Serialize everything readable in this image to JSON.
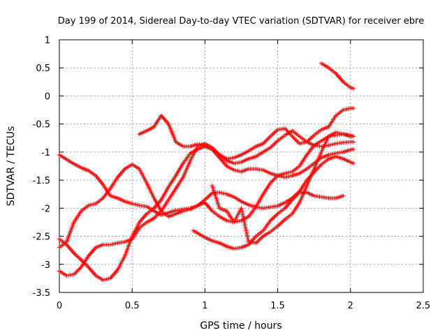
{
  "chart_data": {
    "type": "scatter",
    "title": "Day 199 of 2014, Sidereal Day-to-day VTEC variation (SDTVAR) for receiver ebre",
    "xlabel": "GPS time / hours",
    "ylabel": "SDTVAR / TECUs",
    "xlim": [
      0,
      2.5
    ],
    "ylim": [
      -3.5,
      1
    ],
    "xticks": [
      0,
      0.5,
      1,
      1.5,
      2,
      2.5
    ],
    "yticks": [
      -3.5,
      -3,
      -2.5,
      -2,
      -1.5,
      -1,
      -0.5,
      0,
      0.5,
      1
    ],
    "xtick_labels": [
      "0",
      "0.5",
      "1",
      "1.5",
      "2",
      "2.5"
    ],
    "ytick_labels": [
      "-3.5",
      "-3",
      "-2.5",
      "-2",
      "-1.5",
      "-1",
      "-0.5",
      "0",
      "0.5",
      "1"
    ],
    "grid": true,
    "marker": "plus",
    "color": "#ff0000",
    "series": [
      {
        "x": [
          0.0,
          0.08,
          0.15,
          0.2,
          0.25,
          0.3,
          0.35,
          0.4,
          0.45,
          0.5,
          0.55,
          0.6,
          0.65,
          0.7,
          0.75,
          0.8,
          0.85,
          0.9,
          0.95,
          1.0,
          1.05,
          1.1,
          1.15,
          1.2,
          1.25,
          1.3,
          1.35,
          1.4,
          1.45,
          1.5,
          1.55,
          1.6,
          1.65,
          1.7,
          1.75,
          1.8,
          1.85,
          1.9,
          1.95,
          2.0,
          2.02
        ],
        "y": [
          -1.05,
          -1.18,
          -1.28,
          -1.33,
          -1.42,
          -1.58,
          -1.78,
          -1.82,
          -1.88,
          -1.92,
          -1.95,
          -1.97,
          -2.05,
          -2.12,
          -2.08,
          -2.04,
          -2.02,
          -2.0,
          -1.96,
          -1.85,
          -1.73,
          -1.72,
          -1.75,
          -1.8,
          -1.88,
          -1.94,
          -1.98,
          -2.0,
          -1.98,
          -1.96,
          -1.9,
          -1.82,
          -1.7,
          -1.5,
          -1.36,
          -1.22,
          -1.12,
          -1.08,
          -1.12,
          -1.18,
          -1.2
        ]
      },
      {
        "x": [
          0.0,
          0.05,
          0.1,
          0.15,
          0.2,
          0.25,
          0.3,
          0.35,
          0.4,
          0.45,
          0.5,
          0.55,
          0.6,
          0.65,
          0.7,
          0.75,
          0.8,
          0.85,
          0.9,
          0.95,
          1.0,
          1.05,
          1.1,
          1.15,
          1.2,
          1.25,
          1.3,
          1.35,
          1.4,
          1.45,
          1.5,
          1.55,
          1.6,
          1.65,
          1.7,
          1.75,
          1.8,
          1.85,
          1.9,
          1.95,
          2.0,
          2.02
        ],
        "y": [
          -2.7,
          -2.6,
          -2.25,
          -2.05,
          -1.95,
          -1.92,
          -1.82,
          -1.65,
          -1.45,
          -1.3,
          -1.22,
          -1.3,
          -1.55,
          -1.82,
          -2.05,
          -2.15,
          -2.1,
          -2.05,
          -2.02,
          -1.95,
          -1.9,
          -2.05,
          -2.15,
          -2.22,
          -2.25,
          -2.22,
          -2.15,
          -1.98,
          -1.75,
          -1.55,
          -1.42,
          -1.38,
          -1.35,
          -1.25,
          -1.05,
          -0.88,
          -0.8,
          -0.72,
          -0.7,
          -0.68,
          -0.7,
          -0.72
        ]
      },
      {
        "x": [
          0.0,
          0.05,
          0.1,
          0.15,
          0.2,
          0.25,
          0.3,
          0.35,
          0.4,
          0.45,
          0.5,
          0.55,
          0.6,
          0.65,
          0.7,
          0.75,
          0.8,
          0.85,
          0.9,
          0.95,
          1.0,
          1.05,
          1.1,
          1.15,
          1.2,
          1.25,
          1.3,
          1.35,
          1.4,
          1.45,
          1.5,
          1.55,
          1.6,
          1.65,
          1.7,
          1.75,
          1.8,
          1.85,
          1.9,
          1.95,
          2.0,
          2.02
        ],
        "y": [
          -3.12,
          -3.2,
          -3.18,
          -3.05,
          -2.85,
          -2.7,
          -2.65,
          -2.65,
          -2.62,
          -2.6,
          -2.55,
          -2.35,
          -2.25,
          -2.18,
          -2.05,
          -1.85,
          -1.65,
          -1.45,
          -1.15,
          -0.9,
          -0.85,
          -0.92,
          -1.05,
          -1.15,
          -1.2,
          -1.18,
          -1.12,
          -1.08,
          -1.0,
          -0.92,
          -0.8,
          -0.7,
          -0.62,
          -0.72,
          -0.82,
          -0.88,
          -0.9,
          -0.88,
          -0.85,
          -0.83,
          -0.82,
          -0.82
        ]
      },
      {
        "x": [
          0.0,
          0.05,
          0.1,
          0.15,
          0.2,
          0.25,
          0.3,
          0.35,
          0.4,
          0.45,
          0.5,
          0.55,
          0.6,
          0.65,
          0.7,
          0.75,
          0.8,
          0.85,
          0.9,
          0.95,
          1.0,
          1.05,
          1.1,
          1.15,
          1.2,
          1.25,
          1.3,
          1.35,
          1.4,
          1.45,
          1.5,
          1.55,
          1.6,
          1.65,
          1.7,
          1.75,
          1.8,
          1.85,
          1.9,
          1.95,
          2.0,
          2.02
        ],
        "y": [
          -2.55,
          -2.65,
          -2.8,
          -2.92,
          -3.05,
          -3.2,
          -3.28,
          -3.25,
          -3.1,
          -2.85,
          -2.5,
          -2.25,
          -2.1,
          -2.0,
          -1.85,
          -1.62,
          -1.42,
          -1.2,
          -1.02,
          -0.95,
          -0.9,
          -0.95,
          -1.1,
          -1.25,
          -1.32,
          -1.35,
          -1.3,
          -1.3,
          -1.32,
          -1.38,
          -1.42,
          -1.45,
          -1.42,
          -1.38,
          -1.3,
          -1.2,
          -1.1,
          -1.05,
          -1.02,
          -1.0,
          -0.96,
          -0.95
        ]
      },
      {
        "x": [
          0.55,
          0.6,
          0.65,
          0.7,
          0.75,
          0.8,
          0.85,
          0.9,
          0.95,
          1.0,
          1.05,
          1.1,
          1.15,
          1.2,
          1.25,
          1.3,
          1.35,
          1.4,
          1.45,
          1.5,
          1.55,
          1.6,
          1.65,
          1.7,
          1.75,
          1.8,
          1.85,
          1.9,
          1.95,
          2.0,
          2.02
        ],
        "y": [
          -0.68,
          -0.62,
          -0.55,
          -0.35,
          -0.5,
          -0.82,
          -0.9,
          -0.9,
          -0.86,
          -0.88,
          -0.95,
          -1.05,
          -1.12,
          -1.1,
          -1.05,
          -0.98,
          -0.9,
          -0.85,
          -0.72,
          -0.6,
          -0.58,
          -0.72,
          -0.85,
          -0.82,
          -0.7,
          -0.6,
          -0.55,
          -0.35,
          -0.25,
          -0.22,
          -0.22
        ]
      },
      {
        "x": [
          0.92,
          1.0,
          1.05,
          1.1,
          1.15,
          1.2,
          1.25,
          1.3,
          1.35,
          1.4,
          1.45,
          1.5,
          1.55,
          1.6,
          1.65,
          1.7,
          1.75,
          1.8,
          1.85,
          1.9,
          1.95
        ],
        "y": [
          -2.4,
          -2.52,
          -2.58,
          -2.62,
          -2.68,
          -2.72,
          -2.7,
          -2.65,
          -2.5,
          -2.4,
          -2.22,
          -2.1,
          -2.0,
          -1.85,
          -1.72,
          -1.72,
          -1.78,
          -1.8,
          -1.82,
          -1.82,
          -1.78
        ]
      },
      {
        "x": [
          1.05,
          1.1,
          1.15,
          1.2,
          1.25,
          1.3,
          1.35,
          1.4,
          1.45,
          1.5,
          1.55,
          1.6,
          1.65,
          1.7,
          1.75,
          1.8,
          1.85,
          1.9,
          1.95,
          2.0,
          2.02
        ],
        "y": [
          -1.6,
          -2.0,
          -2.05,
          -2.25,
          -2.0,
          -2.6,
          -2.62,
          -2.5,
          -2.42,
          -2.32,
          -2.2,
          -2.1,
          -1.9,
          -1.6,
          -1.3,
          -1.0,
          -0.72,
          -0.65,
          -0.68,
          -0.72,
          -0.72
        ]
      },
      {
        "x": [
          1.8,
          1.85,
          1.9,
          1.95,
          2.0,
          2.02
        ],
        "y": [
          0.58,
          0.5,
          0.4,
          0.25,
          0.15,
          0.13
        ]
      }
    ]
  }
}
